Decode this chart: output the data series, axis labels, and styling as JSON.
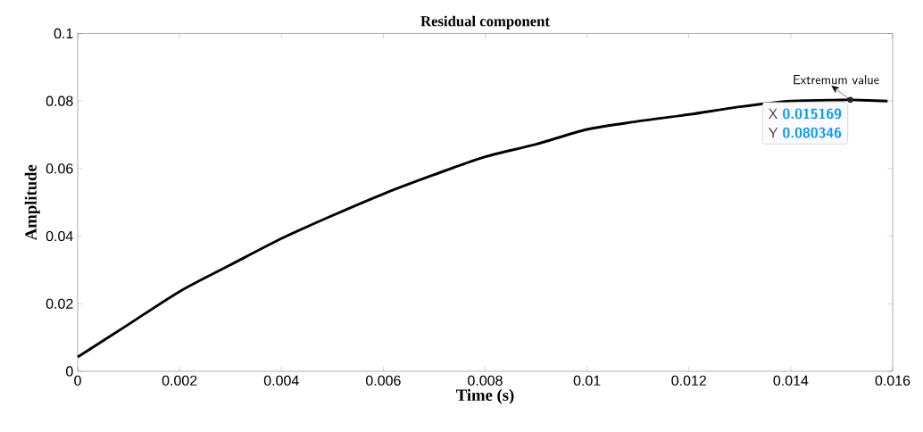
{
  "chart_data": {
    "type": "line",
    "title": "Residual component",
    "xlabel": "Time (s)",
    "ylabel": "Amplitude",
    "x": [
      0,
      0.001,
      0.002,
      0.003,
      0.004,
      0.005,
      0.006,
      0.007,
      0.008,
      0.009,
      0.01,
      0.011,
      0.012,
      0.013,
      0.014,
      0.015,
      0.015169,
      0.0159
    ],
    "series": [
      {
        "color": "#000000",
        "values": [
          0.0042,
          0.0139,
          0.0236,
          0.0315,
          0.0393,
          0.0461,
          0.0525,
          0.0582,
          0.0635,
          0.0672,
          0.0716,
          0.074,
          0.076,
          0.0783,
          0.08,
          0.0803,
          0.080346,
          0.08
        ]
      }
    ],
    "xlim": [
      0,
      0.016
    ],
    "ylim": [
      0,
      0.1
    ],
    "xticks": [
      0,
      0.002,
      0.004,
      0.006,
      0.008,
      0.01,
      0.012,
      0.014,
      0.016
    ],
    "yticks": [
      0,
      0.02,
      0.04,
      0.06,
      0.08,
      0.1
    ],
    "grid": false,
    "marker": "none",
    "line_style": "solid",
    "annotations": [
      {
        "text": "Extremum value",
        "x": 0.015169,
        "y": 0.080346
      },
      "X **0.015169**",
      "Y **0.080346**"
    ]
  }
}
